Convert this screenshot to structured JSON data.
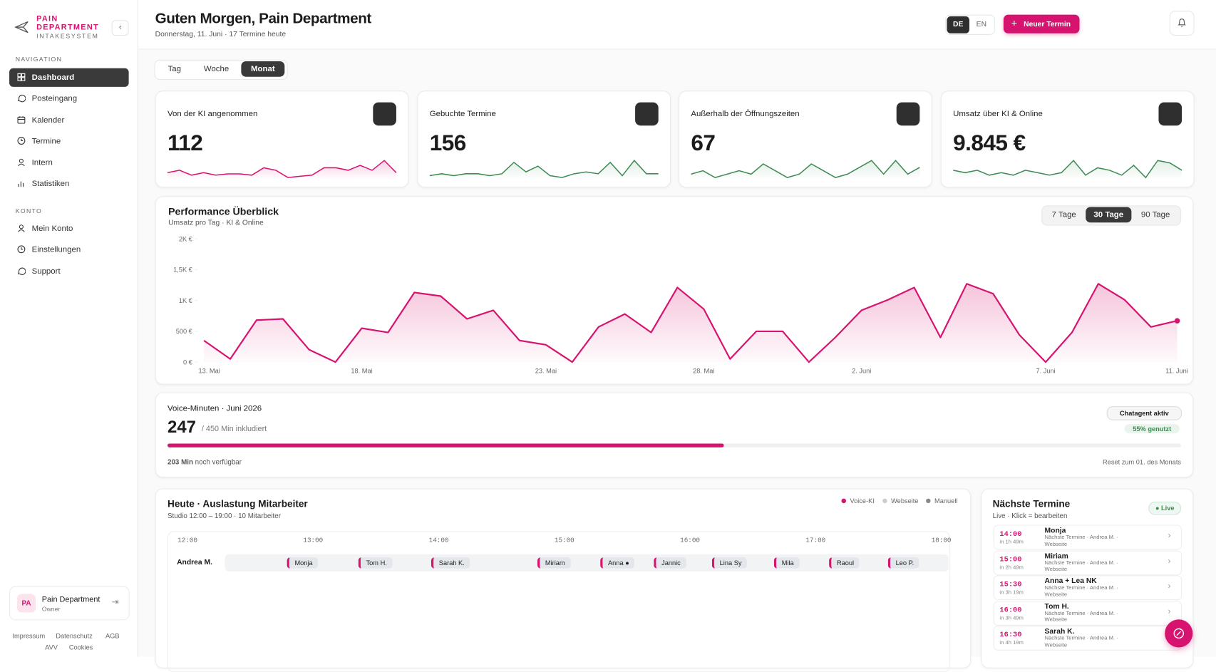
{
  "sidebar": {
    "brand": [
      "PAIN",
      "DEPARTMENT",
      "INTAKESYSTEM"
    ],
    "nav_heading": "NAVIGATION",
    "nav": [
      "Dashboard",
      "Posteingang",
      "Kalender",
      "Termine",
      "Intern",
      "Statistiken"
    ],
    "account_heading": "KONTO",
    "account": [
      "Mein Konto",
      "Einstellungen",
      "Support"
    ],
    "user": {
      "initials": "PA",
      "name": "Pain Department",
      "role": "Owner"
    },
    "footer_links": [
      "Impressum",
      "Datenschutz",
      "AGB",
      "AVV",
      "Cookies"
    ]
  },
  "header": {
    "title": "Guten Morgen, Pain Department",
    "subtitle": "Donnerstag, 11. Juni · 17 Termine heute",
    "languages": [
      "DE",
      "EN"
    ],
    "new_button": "Neuer Termin"
  },
  "period_tabs": [
    "Tag",
    "Woche",
    "Monat"
  ],
  "kpis": [
    {
      "label": "Von der KI angenommen",
      "value": 112,
      "color": "#d6136f",
      "spark": [
        3,
        4,
        2,
        3,
        2,
        2.5,
        2.5,
        2,
        5,
        4,
        1,
        1.5,
        2,
        5,
        5,
        4,
        6,
        4,
        8,
        3
      ]
    },
    {
      "label": "Gebuchte Termine",
      "value": 156,
      "color": "#3f8a55",
      "spark": [
        2,
        3,
        2,
        3,
        3,
        2,
        3,
        9,
        4,
        7,
        2,
        1,
        3,
        4,
        3,
        9,
        2,
        10,
        3,
        3
      ]
    },
    {
      "label": "Außerhalb der Öffnungszeiten",
      "value": 67,
      "color": "#3f8a55",
      "spark": [
        3,
        4,
        2,
        3,
        4,
        3,
        6,
        4,
        2,
        3,
        6,
        4,
        2,
        3,
        5,
        7,
        3,
        7,
        3,
        5
      ]
    },
    {
      "label": "Umsatz über KI & Online",
      "value": "9.845 €",
      "color": "#3f8a55",
      "spark": [
        4,
        3,
        4,
        2,
        3,
        2,
        4,
        3,
        2,
        3,
        8,
        2,
        5,
        4,
        2,
        6,
        1,
        8,
        7,
        4
      ]
    }
  ],
  "chart_data": {
    "type": "line",
    "title": "Performance Überblick",
    "subtitle": "Umsatz pro Tag · KI & Online",
    "range_tabs": [
      "7 Tage",
      "30 Tage",
      "90 Tage"
    ],
    "categories": [
      "13. Mai",
      null,
      null,
      null,
      null,
      null,
      "18. Mai",
      null,
      null,
      null,
      null,
      null,
      null,
      "23. Mai",
      null,
      null,
      null,
      null,
      null,
      "28. Mai",
      null,
      null,
      null,
      null,
      null,
      "2. Juni",
      null,
      null,
      null,
      null,
      null,
      null,
      "7. Juni",
      null,
      null,
      null,
      null,
      "11. Juni"
    ],
    "values": [
      350,
      50,
      680,
      700,
      200,
      0,
      550,
      480,
      1130,
      1070,
      700,
      840,
      350,
      280,
      0,
      570,
      780,
      480,
      1210,
      860,
      50,
      500,
      500,
      0,
      400,
      840,
      1010,
      1210,
      400,
      1270,
      1110,
      440,
      0,
      480,
      1270,
      1010,
      570,
      670
    ],
    "color": "#d6136f",
    "ylim": [
      0,
      2000
    ],
    "yticks": [
      {
        "value": 0,
        "label": "0 €"
      },
      {
        "value": 500,
        "label": "500 €"
      },
      {
        "value": 1000,
        "label": "1K €"
      },
      {
        "value": 1500,
        "label": "1,5K €"
      },
      {
        "value": 2000,
        "label": "2K €"
      }
    ],
    "grid": false
  },
  "voice": {
    "title": "Voice-Minuten · Juni 2026",
    "used": 247,
    "included_prefix": "/",
    "included": 450,
    "included_suffix": "Min inkludiert",
    "badge": "Chatagent aktiv",
    "usage": "55% genutzt",
    "remaining_label": "203 Min",
    "remaining_text": "noch verfügbar",
    "reset": "Reset zum 01. des Monats"
  },
  "schedule": {
    "title": "Heute · Auslastung Mitarbeiter",
    "subtitle": "Studio 12:00 – 19:00 · 10 Mitarbeiter",
    "legend": [
      {
        "name": "Voice-KI",
        "color": "#d6136f"
      },
      {
        "name": "Webseite",
        "color": "#c9ced6"
      },
      {
        "name": "Manuell",
        "color": "#8a8a8a"
      }
    ],
    "hours": [
      "12:00",
      "13:00",
      "14:00",
      "15:00",
      "16:00",
      "17:00",
      "18:00"
    ],
    "rows": [
      {
        "name": "Andrea M.",
        "bookings": [
          "Monja",
          "Tom H.",
          "Sarah K.",
          "Miriam",
          "Anna ●",
          "Jannic",
          "Lina Sy",
          "Mila",
          "Raoul",
          "Leo P."
        ]
      }
    ]
  },
  "upcoming": {
    "title": "Nächste Termine",
    "subtitle": "Live · Klick = bearbeiten",
    "badge": "Live",
    "items": [
      {
        "time": "14:00",
        "eta": "in 1h 49m",
        "name": "Monja",
        "detail": "Nächste Termine · Andrea M. · Webseite"
      },
      {
        "time": "15:00",
        "eta": "in 2h 49m",
        "name": "Miriam",
        "detail": "Nächste Termine · Andrea M. · Webseite"
      },
      {
        "time": "15:30",
        "eta": "in 3h 19m",
        "name": "Anna + Lea NK",
        "detail": "Nächste Termine · Andrea M. · Webseite"
      },
      {
        "time": "16:00",
        "eta": "in 3h 49m",
        "name": "Tom H.",
        "detail": "Nächste Termine · Andrea M. · Webseite"
      },
      {
        "time": "16:30",
        "eta": "in 4h 19m",
        "name": "Sarah K.",
        "detail": "Nächste Termine · Andrea M. · Webseite"
      }
    ]
  }
}
